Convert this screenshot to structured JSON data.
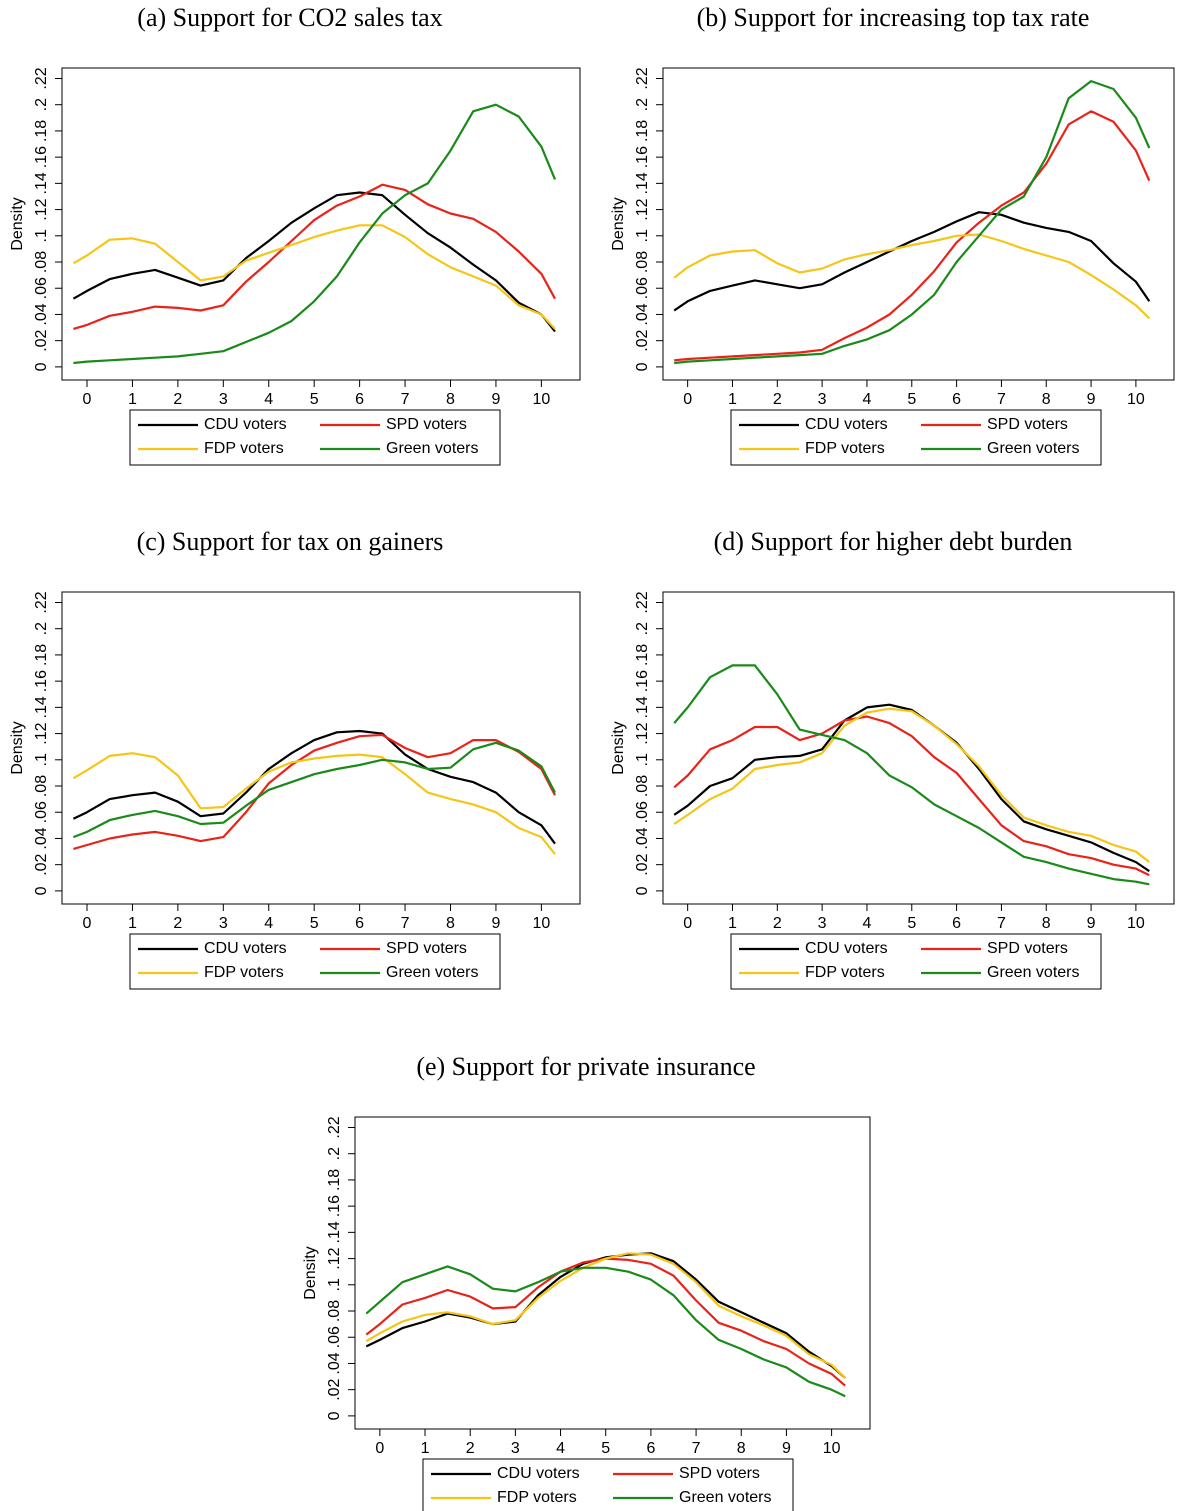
{
  "chart_data": [
    {
      "type": "line",
      "title": "(a) Support for CO2 sales tax",
      "ylabel": "Density",
      "x": [
        -0.3,
        0,
        0.5,
        1,
        1.5,
        2,
        2.5,
        3,
        3.5,
        4,
        4.5,
        5,
        5.5,
        6,
        6.5,
        7,
        7.5,
        8,
        8.5,
        9,
        9.5,
        10,
        10.3
      ],
      "xlim": [
        -0.55,
        10.85
      ],
      "xticks": [
        0,
        1,
        2,
        3,
        4,
        5,
        6,
        7,
        8,
        9,
        10
      ],
      "ylim": [
        -0.01,
        0.228
      ],
      "yticks": [
        0,
        {
          "value": 0.02,
          "label": ".02"
        },
        {
          "value": 0.04,
          "label": ".04"
        },
        {
          "value": 0.06,
          "label": ".06"
        },
        {
          "value": 0.08,
          "label": ".08"
        },
        {
          "value": 0.1,
          "label": ".1"
        },
        {
          "value": 0.12,
          "label": ".12"
        },
        {
          "value": 0.14,
          "label": ".14"
        },
        {
          "value": 0.16,
          "label": ".16"
        },
        {
          "value": 0.18,
          "label": ".18"
        },
        {
          "value": 0.2,
          "label": ".2"
        },
        {
          "value": 0.22,
          "label": ".22"
        }
      ],
      "series": [
        {
          "name": "CDU voters",
          "color": "#000000",
          "values": [
            0.052,
            0.058,
            0.067,
            0.071,
            0.074,
            0.068,
            0.062,
            0.066,
            0.083,
            0.096,
            0.11,
            0.121,
            0.131,
            0.133,
            0.131,
            0.116,
            0.102,
            0.091,
            0.078,
            0.066,
            0.049,
            0.04,
            0.027
          ]
        },
        {
          "name": "SPD voters",
          "color": "#e8231a",
          "values": [
            0.029,
            0.032,
            0.039,
            0.042,
            0.046,
            0.045,
            0.043,
            0.047,
            0.065,
            0.08,
            0.096,
            0.112,
            0.123,
            0.13,
            0.139,
            0.135,
            0.124,
            0.117,
            0.113,
            0.103,
            0.088,
            0.071,
            0.052
          ]
        },
        {
          "name": "FDP voters",
          "color": "#f5c518",
          "values": [
            0.079,
            0.085,
            0.097,
            0.098,
            0.094,
            0.08,
            0.066,
            0.069,
            0.081,
            0.087,
            0.093,
            0.099,
            0.104,
            0.108,
            0.108,
            0.099,
            0.086,
            0.076,
            0.069,
            0.062,
            0.047,
            0.04,
            0.029
          ]
        },
        {
          "name": "Green voters",
          "color": "#1a8a1a",
          "values": [
            0.003,
            0.004,
            0.005,
            0.006,
            0.007,
            0.008,
            0.01,
            0.012,
            0.019,
            0.026,
            0.035,
            0.05,
            0.069,
            0.095,
            0.117,
            0.131,
            0.14,
            0.165,
            0.195,
            0.2,
            0.191,
            0.168,
            0.143
          ]
        }
      ]
    },
    {
      "type": "line",
      "title": "(b) Support for increasing top tax rate",
      "ylabel": "Density",
      "x": [
        -0.3,
        0,
        0.5,
        1,
        1.5,
        2,
        2.5,
        3,
        3.5,
        4,
        4.5,
        5,
        5.5,
        6,
        6.5,
        7,
        7.5,
        8,
        8.5,
        9,
        9.5,
        10,
        10.3
      ],
      "xlim": [
        -0.55,
        10.85
      ],
      "xticks": [
        0,
        1,
        2,
        3,
        4,
        5,
        6,
        7,
        8,
        9,
        10
      ],
      "ylim": [
        -0.01,
        0.228
      ],
      "yticks": [
        0,
        {
          "value": 0.02,
          "label": ".02"
        },
        {
          "value": 0.04,
          "label": ".04"
        },
        {
          "value": 0.06,
          "label": ".06"
        },
        {
          "value": 0.08,
          "label": ".08"
        },
        {
          "value": 0.1,
          "label": ".1"
        },
        {
          "value": 0.12,
          "label": ".12"
        },
        {
          "value": 0.14,
          "label": ".14"
        },
        {
          "value": 0.16,
          "label": ".16"
        },
        {
          "value": 0.18,
          "label": ".18"
        },
        {
          "value": 0.2,
          "label": ".2"
        },
        {
          "value": 0.22,
          "label": ".22"
        }
      ],
      "series": [
        {
          "name": "CDU voters",
          "color": "#000000",
          "values": [
            0.043,
            0.05,
            0.058,
            0.062,
            0.066,
            0.063,
            0.06,
            0.063,
            0.072,
            0.08,
            0.088,
            0.096,
            0.103,
            0.111,
            0.118,
            0.116,
            0.11,
            0.106,
            0.103,
            0.096,
            0.079,
            0.065,
            0.05
          ]
        },
        {
          "name": "SPD voters",
          "color": "#e8231a",
          "values": [
            0.005,
            0.006,
            0.007,
            0.008,
            0.009,
            0.01,
            0.011,
            0.013,
            0.022,
            0.03,
            0.04,
            0.055,
            0.073,
            0.095,
            0.11,
            0.123,
            0.133,
            0.155,
            0.185,
            0.195,
            0.187,
            0.165,
            0.142
          ]
        },
        {
          "name": "FDP voters",
          "color": "#f5c518",
          "values": [
            0.068,
            0.076,
            0.085,
            0.088,
            0.089,
            0.079,
            0.072,
            0.075,
            0.082,
            0.086,
            0.089,
            0.093,
            0.096,
            0.1,
            0.101,
            0.096,
            0.09,
            0.085,
            0.08,
            0.07,
            0.059,
            0.047,
            0.037
          ]
        },
        {
          "name": "Green voters",
          "color": "#1a8a1a",
          "values": [
            0.003,
            0.004,
            0.005,
            0.006,
            0.007,
            0.008,
            0.009,
            0.01,
            0.016,
            0.021,
            0.028,
            0.04,
            0.055,
            0.08,
            0.1,
            0.12,
            0.13,
            0.16,
            0.205,
            0.218,
            0.212,
            0.19,
            0.167
          ]
        }
      ]
    },
    {
      "type": "line",
      "title": "(c) Support for tax on gainers",
      "ylabel": "Density",
      "x": [
        -0.3,
        0,
        0.5,
        1,
        1.5,
        2,
        2.5,
        3,
        3.5,
        4,
        4.5,
        5,
        5.5,
        6,
        6.5,
        7,
        7.5,
        8,
        8.5,
        9,
        9.5,
        10,
        10.3
      ],
      "xlim": [
        -0.55,
        10.85
      ],
      "xticks": [
        0,
        1,
        2,
        3,
        4,
        5,
        6,
        7,
        8,
        9,
        10
      ],
      "ylim": [
        -0.01,
        0.228
      ],
      "yticks": [
        0,
        {
          "value": 0.02,
          "label": ".02"
        },
        {
          "value": 0.04,
          "label": ".04"
        },
        {
          "value": 0.06,
          "label": ".06"
        },
        {
          "value": 0.08,
          "label": ".08"
        },
        {
          "value": 0.1,
          "label": ".1"
        },
        {
          "value": 0.12,
          "label": ".12"
        },
        {
          "value": 0.14,
          "label": ".14"
        },
        {
          "value": 0.16,
          "label": ".16"
        },
        {
          "value": 0.18,
          "label": ".18"
        },
        {
          "value": 0.2,
          "label": ".2"
        },
        {
          "value": 0.22,
          "label": ".22"
        }
      ],
      "series": [
        {
          "name": "CDU voters",
          "color": "#000000",
          "values": [
            0.055,
            0.06,
            0.07,
            0.073,
            0.075,
            0.068,
            0.057,
            0.059,
            0.075,
            0.093,
            0.105,
            0.115,
            0.121,
            0.122,
            0.12,
            0.104,
            0.093,
            0.087,
            0.083,
            0.075,
            0.06,
            0.05,
            0.036
          ]
        },
        {
          "name": "SPD voters",
          "color": "#e8231a",
          "values": [
            0.032,
            0.035,
            0.04,
            0.043,
            0.045,
            0.042,
            0.038,
            0.041,
            0.06,
            0.082,
            0.096,
            0.107,
            0.113,
            0.118,
            0.119,
            0.109,
            0.102,
            0.105,
            0.115,
            0.115,
            0.106,
            0.093,
            0.073
          ]
        },
        {
          "name": "FDP voters",
          "color": "#f5c518",
          "values": [
            0.086,
            0.092,
            0.103,
            0.105,
            0.102,
            0.088,
            0.063,
            0.064,
            0.078,
            0.091,
            0.098,
            0.101,
            0.103,
            0.104,
            0.102,
            0.089,
            0.075,
            0.07,
            0.066,
            0.06,
            0.048,
            0.041,
            0.028
          ]
        },
        {
          "name": "Green voters",
          "color": "#1a8a1a",
          "values": [
            0.041,
            0.045,
            0.054,
            0.058,
            0.061,
            0.057,
            0.051,
            0.052,
            0.065,
            0.077,
            0.083,
            0.089,
            0.093,
            0.096,
            0.1,
            0.098,
            0.093,
            0.094,
            0.108,
            0.113,
            0.107,
            0.095,
            0.075
          ]
        }
      ]
    },
    {
      "type": "line",
      "title": "(d) Support for higher debt burden",
      "ylabel": "Density",
      "x": [
        -0.3,
        0,
        0.5,
        1,
        1.5,
        2,
        2.5,
        3,
        3.5,
        4,
        4.5,
        5,
        5.5,
        6,
        6.5,
        7,
        7.5,
        8,
        8.5,
        9,
        9.5,
        10,
        10.3
      ],
      "xlim": [
        -0.55,
        10.85
      ],
      "xticks": [
        0,
        1,
        2,
        3,
        4,
        5,
        6,
        7,
        8,
        9,
        10
      ],
      "ylim": [
        -0.01,
        0.228
      ],
      "yticks": [
        0,
        {
          "value": 0.02,
          "label": ".02"
        },
        {
          "value": 0.04,
          "label": ".04"
        },
        {
          "value": 0.06,
          "label": ".06"
        },
        {
          "value": 0.08,
          "label": ".08"
        },
        {
          "value": 0.1,
          "label": ".1"
        },
        {
          "value": 0.12,
          "label": ".12"
        },
        {
          "value": 0.14,
          "label": ".14"
        },
        {
          "value": 0.16,
          "label": ".16"
        },
        {
          "value": 0.18,
          "label": ".18"
        },
        {
          "value": 0.2,
          "label": ".2"
        },
        {
          "value": 0.22,
          "label": ".22"
        }
      ],
      "series": [
        {
          "name": "CDU voters",
          "color": "#000000",
          "values": [
            0.058,
            0.065,
            0.08,
            0.086,
            0.1,
            0.102,
            0.103,
            0.108,
            0.13,
            0.14,
            0.142,
            0.138,
            0.126,
            0.113,
            0.093,
            0.07,
            0.053,
            0.047,
            0.042,
            0.037,
            0.029,
            0.022,
            0.015
          ]
        },
        {
          "name": "SPD voters",
          "color": "#e8231a",
          "values": [
            0.079,
            0.088,
            0.108,
            0.115,
            0.125,
            0.125,
            0.115,
            0.12,
            0.13,
            0.133,
            0.128,
            0.118,
            0.102,
            0.09,
            0.07,
            0.05,
            0.038,
            0.034,
            0.028,
            0.025,
            0.02,
            0.017,
            0.012
          ]
        },
        {
          "name": "FDP voters",
          "color": "#f5c518",
          "values": [
            0.051,
            0.058,
            0.07,
            0.078,
            0.093,
            0.096,
            0.098,
            0.105,
            0.126,
            0.136,
            0.139,
            0.137,
            0.126,
            0.112,
            0.095,
            0.073,
            0.056,
            0.05,
            0.045,
            0.042,
            0.035,
            0.03,
            0.022
          ]
        },
        {
          "name": "Green voters",
          "color": "#1a8a1a",
          "values": [
            0.128,
            0.14,
            0.163,
            0.172,
            0.172,
            0.15,
            0.123,
            0.119,
            0.115,
            0.105,
            0.088,
            0.079,
            0.066,
            0.057,
            0.048,
            0.037,
            0.026,
            0.022,
            0.017,
            0.013,
            0.009,
            0.007,
            0.005
          ]
        }
      ]
    },
    {
      "type": "line",
      "title": "(e) Support for private insurance",
      "ylabel": "Density",
      "x": [
        -0.3,
        0,
        0.5,
        1,
        1.5,
        2,
        2.5,
        3,
        3.5,
        4,
        4.5,
        5,
        5.5,
        6,
        6.5,
        7,
        7.5,
        8,
        8.5,
        9,
        9.5,
        10,
        10.3
      ],
      "xlim": [
        -0.55,
        10.85
      ],
      "xticks": [
        0,
        1,
        2,
        3,
        4,
        5,
        6,
        7,
        8,
        9,
        10
      ],
      "ylim": [
        -0.01,
        0.228
      ],
      "yticks": [
        0,
        {
          "value": 0.02,
          "label": ".02"
        },
        {
          "value": 0.04,
          "label": ".04"
        },
        {
          "value": 0.06,
          "label": ".06"
        },
        {
          "value": 0.08,
          "label": ".08"
        },
        {
          "value": 0.1,
          "label": ".1"
        },
        {
          "value": 0.12,
          "label": ".12"
        },
        {
          "value": 0.14,
          "label": ".14"
        },
        {
          "value": 0.16,
          "label": ".16"
        },
        {
          "value": 0.18,
          "label": ".18"
        },
        {
          "value": 0.2,
          "label": ".2"
        },
        {
          "value": 0.22,
          "label": ".22"
        }
      ],
      "series": [
        {
          "name": "CDU voters",
          "color": "#000000",
          "values": [
            0.053,
            0.058,
            0.067,
            0.072,
            0.078,
            0.075,
            0.07,
            0.072,
            0.092,
            0.106,
            0.116,
            0.121,
            0.123,
            0.124,
            0.118,
            0.104,
            0.087,
            0.079,
            0.071,
            0.063,
            0.049,
            0.038,
            0.029
          ]
        },
        {
          "name": "SPD voters",
          "color": "#e8231a",
          "values": [
            0.062,
            0.07,
            0.085,
            0.09,
            0.096,
            0.091,
            0.082,
            0.083,
            0.098,
            0.11,
            0.117,
            0.12,
            0.119,
            0.116,
            0.107,
            0.088,
            0.071,
            0.065,
            0.057,
            0.051,
            0.04,
            0.032,
            0.023
          ]
        },
        {
          "name": "FDP voters",
          "color": "#f5c518",
          "values": [
            0.057,
            0.063,
            0.072,
            0.077,
            0.079,
            0.076,
            0.07,
            0.073,
            0.09,
            0.103,
            0.113,
            0.12,
            0.124,
            0.123,
            0.116,
            0.102,
            0.084,
            0.076,
            0.069,
            0.061,
            0.047,
            0.039,
            0.029
          ]
        },
        {
          "name": "Green voters",
          "color": "#1a8a1a",
          "values": [
            0.078,
            0.087,
            0.102,
            0.108,
            0.114,
            0.108,
            0.097,
            0.095,
            0.102,
            0.11,
            0.113,
            0.113,
            0.11,
            0.104,
            0.092,
            0.073,
            0.058,
            0.051,
            0.043,
            0.037,
            0.026,
            0.02,
            0.015
          ]
        }
      ]
    }
  ]
}
